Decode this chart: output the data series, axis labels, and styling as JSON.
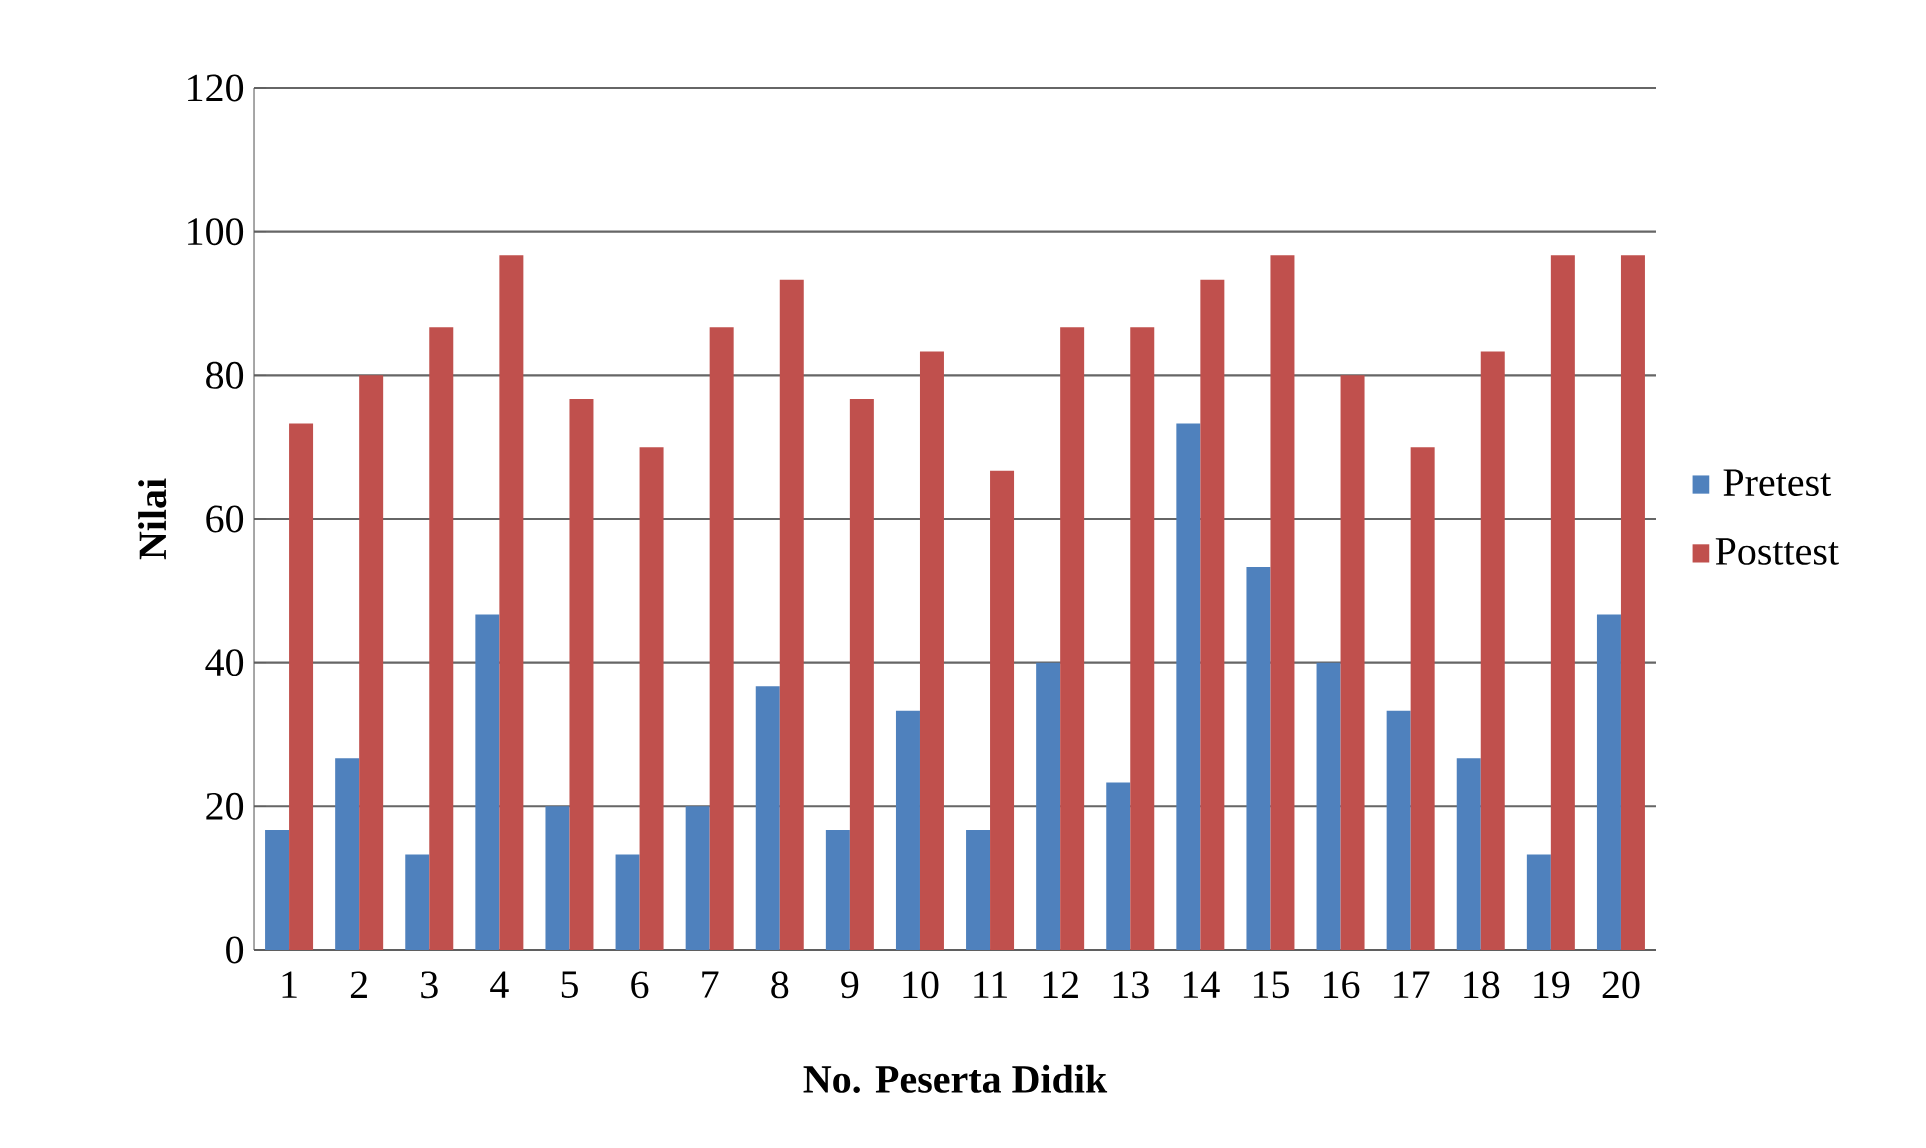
{
  "chart_data": {
    "type": "bar",
    "xlabel": "No. Peserta Didik",
    "ylabel": "Nilai",
    "categories": [
      "1",
      "2",
      "3",
      "4",
      "5",
      "6",
      "7",
      "8",
      "9",
      "10",
      "11",
      "12",
      "13",
      "14",
      "15",
      "16",
      "17",
      "18",
      "19",
      "20"
    ],
    "series": [
      {
        "name": "Pretest",
        "color": "#4f81bd",
        "values": [
          16.7,
          26.7,
          13.3,
          46.7,
          20,
          13.3,
          20,
          36.7,
          16.7,
          33.3,
          16.7,
          40,
          23.3,
          73.3,
          53.3,
          40,
          33.3,
          26.7,
          13.3,
          46.7
        ]
      },
      {
        "name": "Posttest",
        "color": "#c0504d",
        "values": [
          73.3,
          80,
          86.7,
          96.7,
          76.7,
          70,
          86.7,
          93.3,
          76.7,
          83.3,
          66.7,
          86.7,
          86.7,
          93.3,
          96.7,
          80,
          70,
          83.3,
          96.7,
          96.7
        ]
      }
    ],
    "ylim": [
      0,
      120
    ],
    "yticks": [
      0,
      20,
      40,
      60,
      80,
      100,
      120
    ],
    "grid": "y",
    "legend": "right"
  }
}
